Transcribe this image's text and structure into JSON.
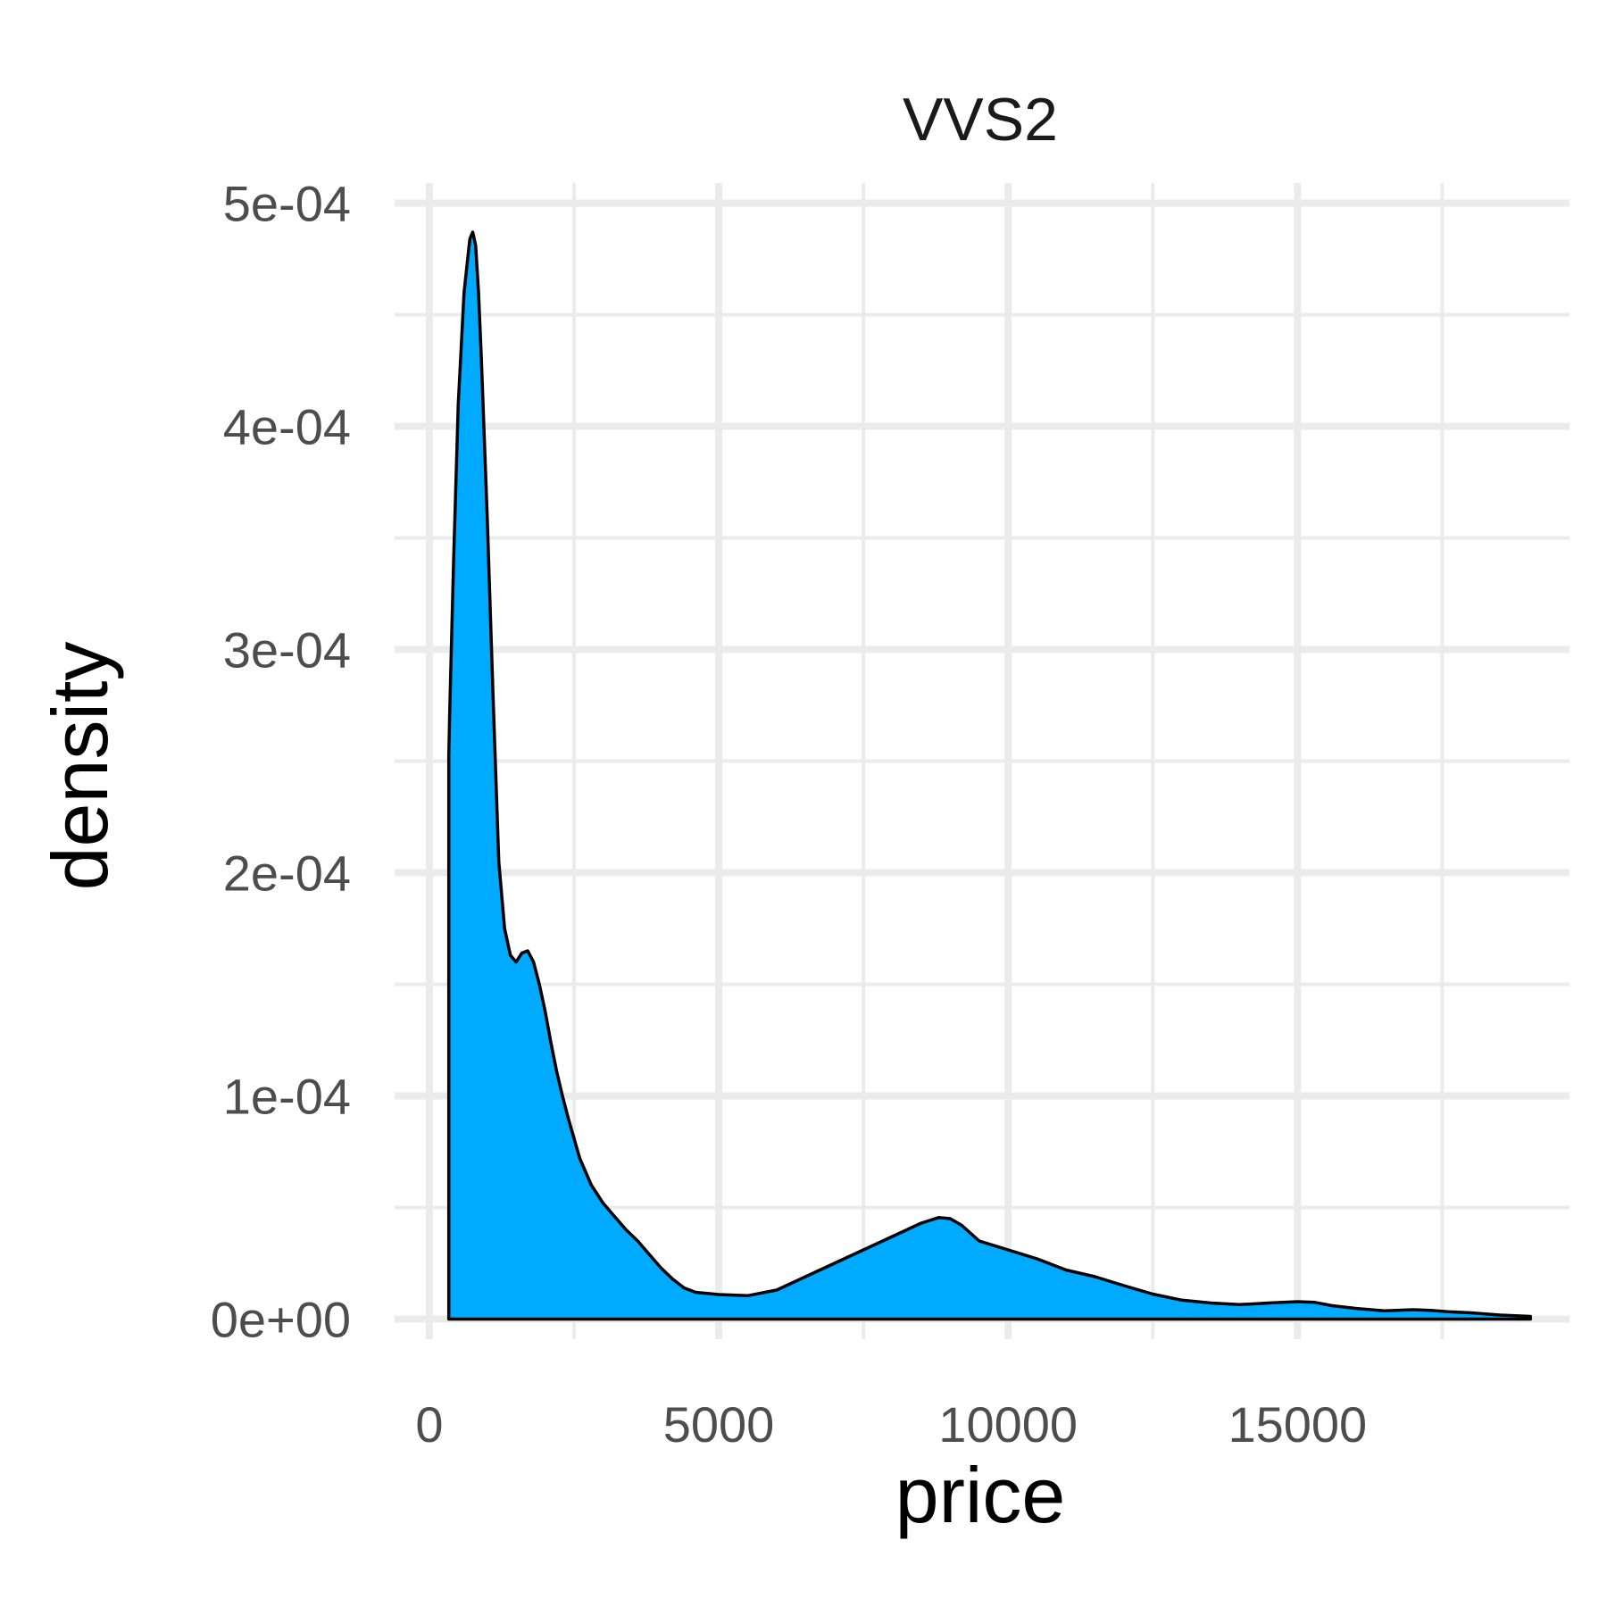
{
  "chart_data": {
    "type": "area",
    "title": "VVS2",
    "xlabel": "price",
    "ylabel": "density",
    "xlim": [
      -600,
      19700
    ],
    "ylim": [
      -9e-06,
      0.000509
    ],
    "x_ticks": [
      0,
      5000,
      10000,
      15000
    ],
    "x_tick_labels": [
      "0",
      "5000",
      "10000",
      "15000"
    ],
    "x_minor_ticks": [
      2500,
      7500,
      12500,
      17500
    ],
    "y_ticks": [
      0,
      0.0001,
      0.0002,
      0.0003,
      0.0004,
      0.0005
    ],
    "y_tick_labels": [
      "0e+00",
      "1e-04",
      "2e-04",
      "3e-04",
      "4e-04",
      "5e-04"
    ],
    "y_minor_ticks": [
      5e-05,
      0.00015,
      0.00025,
      0.00035,
      0.00045
    ],
    "grid": true,
    "legend": "none",
    "fill_color": "#00aaff",
    "line_color": "#000000",
    "series": [
      {
        "x": [
          336,
          350,
          420,
          500,
          600,
          700,
          750,
          800,
          850,
          900,
          1000,
          1100,
          1200,
          1300,
          1400,
          1500,
          1600,
          1700,
          1800,
          1900,
          2000,
          2100,
          2200,
          2300,
          2400,
          2600,
          2800,
          3000,
          3200,
          3400,
          3600,
          3800,
          4000,
          4200,
          4400,
          4600,
          5000,
          5500,
          6000,
          6500,
          7000,
          7500,
          8000,
          8500,
          8800,
          9000,
          9200,
          9500,
          10000,
          10500,
          11000,
          11500,
          12000,
          12500,
          13000,
          13500,
          14000,
          14500,
          15000,
          15300,
          15600,
          16000,
          16500,
          17000,
          17300,
          17600,
          18000,
          18500,
          19025
        ],
        "y": [
          0.000252,
          0.00027,
          0.00034,
          0.00041,
          0.00046,
          0.000484,
          0.000487,
          0.000481,
          0.00046,
          0.00043,
          0.00036,
          0.00028,
          0.000205,
          0.000175,
          0.000163,
          0.00016,
          0.000164,
          0.000165,
          0.00016,
          0.00015,
          0.000138,
          0.000124,
          0.000111,
          0.0001,
          9e-05,
          7.2e-05,
          6e-05,
          5.2e-05,
          4.6e-05,
          4e-05,
          3.5e-05,
          2.9e-05,
          2.3e-05,
          1.8e-05,
          1.4e-05,
          1.2e-05,
          1.1e-05,
          1.05e-05,
          1.3e-05,
          1.9e-05,
          2.5e-05,
          3.1e-05,
          3.7e-05,
          4.3e-05,
          4.55e-05,
          4.5e-05,
          4.2e-05,
          3.5e-05,
          3.1e-05,
          2.7e-05,
          2.2e-05,
          1.9e-05,
          1.5e-05,
          1.12e-05,
          8.5e-06,
          7.2e-06,
          6.5e-06,
          7.2e-06,
          7.8e-06,
          7.5e-06,
          6e-06,
          4.8e-06,
          3.7e-06,
          4.2e-06,
          3.9e-06,
          3.3e-06,
          2.8e-06,
          1.8e-06,
          1.2e-06
        ]
      }
    ]
  }
}
